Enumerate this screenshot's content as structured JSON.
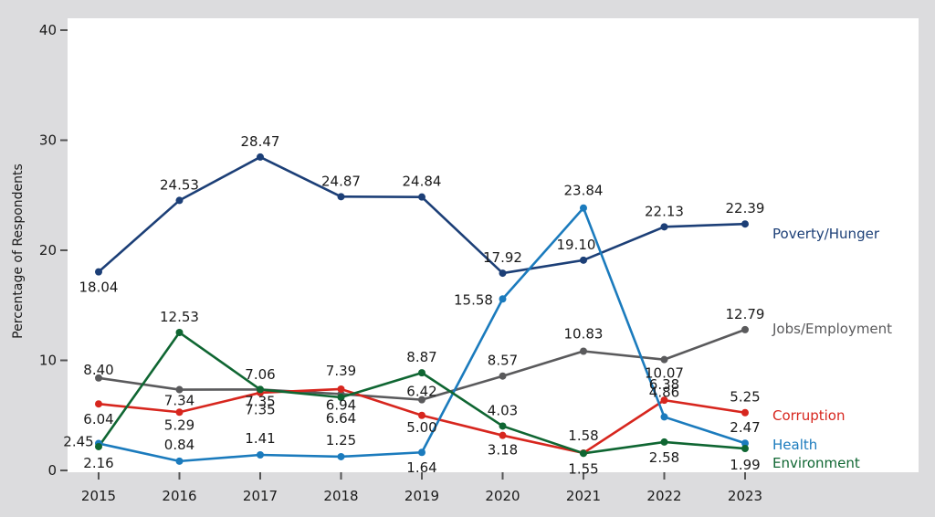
{
  "chart_data": {
    "type": "line",
    "title": "",
    "xlabel": "",
    "ylabel": "Percentage of Respondents",
    "ylim": [
      0,
      40
    ],
    "yticks": [
      0,
      10,
      20,
      30,
      40
    ],
    "grid": false,
    "legend_placement": "right, inline at line ends",
    "x": [
      "2015",
      "2016",
      "2017",
      "2018",
      "2019",
      "2020",
      "2021",
      "2022",
      "2023"
    ],
    "series": [
      {
        "name": "Poverty/Hunger",
        "color": "#1c3f77",
        "values": [
          18.04,
          24.53,
          28.47,
          24.87,
          24.84,
          17.92,
          19.1,
          22.13,
          22.39
        ],
        "labels": [
          "18.04",
          "24.53",
          "28.47",
          "24.87",
          "24.84",
          "17.92",
          "19.10",
          "22.13",
          "22.39"
        ]
      },
      {
        "name": "Jobs/Employment",
        "color": "#5a5a5c",
        "values": [
          8.4,
          7.34,
          7.35,
          6.94,
          6.42,
          8.57,
          10.83,
          10.07,
          12.79
        ],
        "labels": [
          "8.40",
          "7.34",
          "7.35",
          "6.94",
          "6.42",
          "8.57",
          "10.83",
          "10.07",
          "12.79"
        ]
      },
      {
        "name": "Corruption",
        "color": "#d7261e",
        "values": [
          6.04,
          5.29,
          7.06,
          7.39,
          5.0,
          3.18,
          1.58,
          6.38,
          5.25
        ],
        "labels": [
          "6.04",
          "5.29",
          "7.06",
          "7.39",
          "5.00",
          "3.18",
          "1.58",
          "6.38",
          "5.25"
        ]
      },
      {
        "name": "Health",
        "color": "#1b7bbd",
        "values": [
          2.45,
          0.84,
          1.41,
          1.25,
          1.64,
          15.58,
          23.84,
          4.86,
          2.47
        ],
        "labels": [
          "2.45",
          "0.84",
          "1.41",
          "1.25",
          "1.64",
          "15.58",
          "23.84",
          "4.86",
          "2.47"
        ]
      },
      {
        "name": "Environment",
        "color": "#0f6632",
        "values": [
          2.16,
          12.53,
          7.35,
          6.64,
          8.87,
          4.03,
          1.55,
          2.58,
          1.99
        ],
        "labels": [
          "2.16",
          "12.53",
          "7.35",
          "6.64",
          "8.87",
          "4.03",
          "1.55",
          "2.58",
          "1.99"
        ]
      }
    ]
  }
}
